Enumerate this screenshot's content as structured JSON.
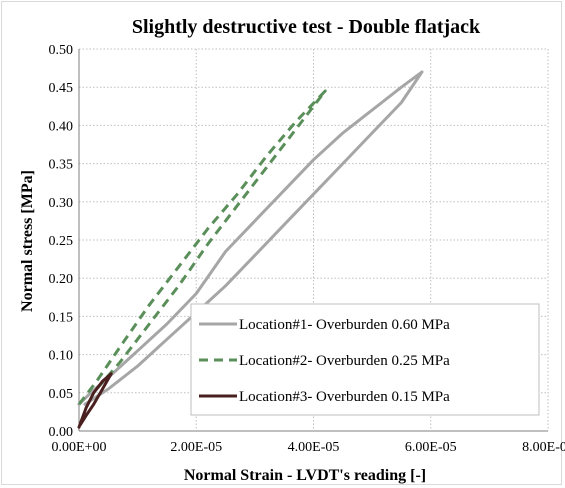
{
  "chart_data": {
    "type": "line",
    "title": "Slightly destructive test - Double flatjack",
    "xlabel": "Normal Strain - LVDT's  reading [-]",
    "ylabel": "Normal stress [MPa]",
    "xlim": [
      0,
      8e-05
    ],
    "ylim": [
      0,
      0.5
    ],
    "x_ticks": [
      0,
      2e-05,
      4e-05,
      6e-05,
      8e-05
    ],
    "x_tick_labels": [
      "0.00E+00",
      "2.00E-05",
      "4.00E-05",
      "6.00E-05",
      "8.00E-05"
    ],
    "y_ticks": [
      0,
      0.05,
      0.1,
      0.15,
      0.2,
      0.25,
      0.3,
      0.35,
      0.4,
      0.45,
      0.5
    ],
    "y_tick_labels": [
      "0.00",
      "0.05",
      "0.10",
      "0.15",
      "0.20",
      "0.25",
      "0.30",
      "0.35",
      "0.40",
      "0.45",
      "0.50"
    ],
    "grid": true,
    "legend_position": "bottom-right",
    "series": [
      {
        "name": "Location#1- Overburden 0.60 MPa",
        "color": "#a6a6a6",
        "style": "solid",
        "x": [
          0,
          2e-06,
          5e-06,
          1e-05,
          1.5e-05,
          2e-05,
          2.5e-05,
          3e-05,
          3.5e-05,
          4e-05,
          4.5e-05,
          5e-05,
          5.5e-05,
          5.85e-05,
          5.5e-05,
          5e-05,
          4.5e-05,
          4e-05,
          3.5e-05,
          3e-05,
          2.5e-05,
          2e-05,
          1.5e-05,
          1e-05,
          5e-06,
          1e-06
        ],
        "y": [
          0.035,
          0.05,
          0.07,
          0.105,
          0.14,
          0.18,
          0.235,
          0.275,
          0.315,
          0.355,
          0.39,
          0.42,
          0.45,
          0.47,
          0.43,
          0.39,
          0.35,
          0.31,
          0.27,
          0.23,
          0.19,
          0.155,
          0.12,
          0.085,
          0.055,
          0.035
        ]
      },
      {
        "name": "Location#2- Overburden 0.25 MPa",
        "color": "#5a8f5a",
        "style": "dashed",
        "x": [
          0,
          3e-06,
          7e-06,
          1.2e-05,
          1.7e-05,
          2.2e-05,
          2.7e-05,
          3.2e-05,
          3.7e-05,
          4.2e-05,
          3.7e-05,
          3.2e-05,
          2.7e-05,
          2.2e-05,
          1.7e-05,
          1.2e-05,
          7e-06,
          3e-06
        ],
        "y": [
          0.035,
          0.065,
          0.11,
          0.165,
          0.215,
          0.265,
          0.31,
          0.36,
          0.405,
          0.445,
          0.395,
          0.345,
          0.295,
          0.245,
          0.19,
          0.14,
          0.09,
          0.055
        ]
      },
      {
        "name": "Location#3- Overburden 0.15 MPa",
        "color": "#4a1f1f",
        "style": "solid",
        "x": [
          0,
          1.2e-06,
          2.5e-06,
          4e-06,
          5.5e-06,
          4e-06,
          2.5e-06,
          1.2e-06,
          2e-07
        ],
        "y": [
          0.005,
          0.03,
          0.05,
          0.065,
          0.075,
          0.055,
          0.035,
          0.02,
          0.008
        ]
      }
    ]
  }
}
